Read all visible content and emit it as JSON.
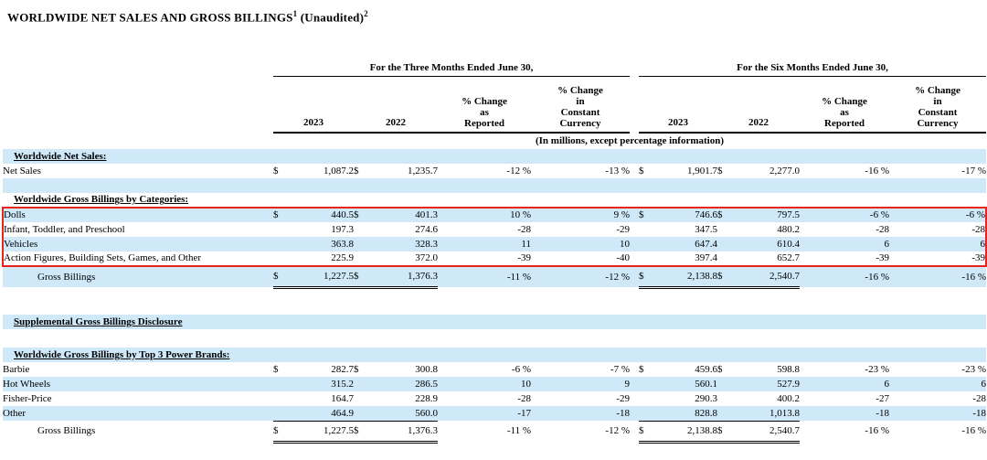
{
  "title": {
    "text": "WORLDWIDE NET SALES AND GROSS BILLINGS",
    "footnote1": "1",
    "suffix": " (Unaudited)",
    "footnote2": "2"
  },
  "table": {
    "group_headers": {
      "three_months": "For the Three Months Ended June 30,",
      "six_months": "For the Six Months Ended June 30,"
    },
    "column_headers": {
      "year1": "2023",
      "year2": "2022",
      "pct_reported": "% Change\nas\nReported",
      "pct_currency": "% Change\nin\nConstant\nCurrency"
    },
    "units_note": "(In millions, except percentage information)",
    "rows": [
      {
        "t": "section",
        "bg": "blue",
        "label": "Worldwide Net Sales:"
      },
      {
        "t": "data",
        "bg": "white",
        "label": "Net Sales",
        "c": [
          "$",
          "1,087.2",
          "$",
          "1,235.7",
          "-12 %",
          "-13 %",
          "$",
          "1,901.7",
          "$",
          "2,277.0",
          "-16 %",
          "-17 %"
        ]
      },
      {
        "t": "empty",
        "bg": "blue"
      },
      {
        "t": "section",
        "bg": "white",
        "label": "Worldwide Gross Billings by Categories:"
      },
      {
        "t": "data",
        "bg": "blue",
        "hl": "top",
        "label": "Dolls",
        "c": [
          "$",
          "440.5",
          "$",
          "401.3",
          "10 %",
          "9 %",
          "$",
          "746.6",
          "$",
          "797.5",
          "-6 %",
          "-6 %"
        ]
      },
      {
        "t": "data",
        "bg": "white",
        "hl": "mid",
        "label": "Infant, Toddler, and Preschool",
        "c": [
          "",
          "197.3",
          "",
          "274.6",
          "-28",
          "-29",
          "",
          "347.5",
          "",
          "480.2",
          "-28",
          "-28"
        ]
      },
      {
        "t": "data",
        "bg": "blue",
        "hl": "mid",
        "label": "Vehicles",
        "c": [
          "",
          "363.8",
          "",
          "328.3",
          "11",
          "10",
          "",
          "647.4",
          "",
          "610.4",
          "6",
          "6"
        ]
      },
      {
        "t": "data",
        "bg": "white",
        "hl": "bottom",
        "label": "Action Figures, Building Sets, Games, and Other",
        "c": [
          "",
          "225.9",
          "",
          "372.0",
          "-39",
          "-40",
          "",
          "397.4",
          "",
          "652.7",
          "-39",
          "-39"
        ]
      },
      {
        "t": "total",
        "bg": "blue",
        "label": "Gross Billings",
        "c": [
          "$",
          "1,227.5",
          "$",
          "1,376.3",
          "-11 %",
          "-12 %",
          "$",
          "2,138.8",
          "$",
          "2,540.7",
          "-16 %",
          "-16 %"
        ]
      },
      {
        "t": "gap",
        "h": 30
      },
      {
        "t": "section",
        "bg": "blue",
        "label": "Supplemental Gross Billings Disclosure"
      },
      {
        "t": "gap",
        "h": 20
      },
      {
        "t": "section",
        "bg": "blue",
        "label": "Worldwide Gross Billings by Top 3 Power Brands:"
      },
      {
        "t": "data",
        "bg": "white",
        "label": "Barbie",
        "c": [
          "$",
          "282.7",
          "$",
          "300.8",
          "-6 %",
          "-7 %",
          "$",
          "459.6",
          "$",
          "598.8",
          "-23 %",
          "-23 %"
        ]
      },
      {
        "t": "data",
        "bg": "blue",
        "label": "Hot Wheels",
        "c": [
          "",
          "315.2",
          "",
          "286.5",
          "10",
          "9",
          "",
          "560.1",
          "",
          "527.9",
          "6",
          "6"
        ]
      },
      {
        "t": "data",
        "bg": "white",
        "label": "Fisher-Price",
        "c": [
          "",
          "164.7",
          "",
          "228.9",
          "-28",
          "-29",
          "",
          "290.3",
          "",
          "400.2",
          "-27",
          "-28"
        ]
      },
      {
        "t": "data",
        "bg": "blue",
        "label": "Other",
        "c": [
          "",
          "464.9",
          "",
          "560.0",
          "-17",
          "-18",
          "",
          "828.8",
          "",
          "1,013.8",
          "-18",
          "-18"
        ]
      },
      {
        "t": "total",
        "bg": "white",
        "label": "Gross Billings",
        "c": [
          "$",
          "1,227.5",
          "$",
          "1,376.3",
          "-11 %",
          "-12 %",
          "$",
          "2,138.8",
          "$",
          "2,540.7",
          "-16 %",
          "-16 %"
        ]
      }
    ]
  },
  "colors": {
    "row_highlight_blue": "#cfe9f9",
    "annotation_box_red": "#e8251c"
  }
}
